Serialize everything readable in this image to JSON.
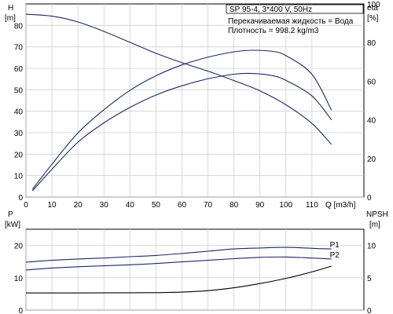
{
  "chart_data": [
    {
      "type": "line",
      "id": "head_efficiency",
      "info_box": {
        "model": "SP 95-4, 3*400 V, 50Hz",
        "liquid": "Перекачиваемая жидкость = Вода",
        "density": "Плотность = 998.2 kg/m3"
      },
      "left_axis": {
        "label_top": "H",
        "label_unit": "[m]",
        "range": [
          0,
          90
        ],
        "ticks": [
          0,
          10,
          20,
          30,
          40,
          50,
          60,
          70,
          80
        ]
      },
      "right_axis": {
        "label_top": "eta",
        "label_unit": "[%]",
        "range": [
          0,
          100
        ],
        "ticks": [
          0,
          20,
          40,
          60,
          80,
          100
        ]
      },
      "x_axis": {
        "label": "Q [m3/h]",
        "range": [
          0,
          130
        ],
        "ticks": [
          0,
          10,
          20,
          30,
          40,
          50,
          60,
          70,
          80,
          90,
          100,
          110
        ]
      },
      "series": [
        {
          "axis": "left",
          "color": "#1b2a63",
          "points": [
            [
              0,
              85.2
            ],
            [
              10,
              84.3
            ],
            [
              20,
              81.6
            ],
            [
              30,
              77.2
            ],
            [
              40,
              72.1
            ],
            [
              50,
              67
            ],
            [
              60,
              62.6
            ],
            [
              70,
              58.7
            ],
            [
              80,
              54.3
            ],
            [
              90,
              49.5
            ],
            [
              100,
              43
            ],
            [
              110,
              34.3
            ],
            [
              117.5,
              24.5
            ]
          ]
        },
        {
          "axis": "right",
          "color": "#1b2a63",
          "points": [
            [
              2.5,
              4
            ],
            [
              10,
              17
            ],
            [
              20,
              33.2
            ],
            [
              30,
              45.2
            ],
            [
              40,
              55.2
            ],
            [
              50,
              62.8
            ],
            [
              60,
              68.4
            ],
            [
              70,
              72.4
            ],
            [
              80,
              75.2
            ],
            [
              87,
              76
            ],
            [
              95,
              75.4
            ],
            [
              100,
              73.2
            ],
            [
              110,
              63.6
            ],
            [
              117.5,
              45
            ]
          ]
        },
        {
          "axis": "right",
          "color": "#1b2a63",
          "points": [
            [
              2.5,
              3.2
            ],
            [
              10,
              14.4
            ],
            [
              20,
              28.4
            ],
            [
              30,
              38.4
            ],
            [
              40,
              46.4
            ],
            [
              50,
              52.8
            ],
            [
              60,
              57.6
            ],
            [
              70,
              61.2
            ],
            [
              80,
              63.6
            ],
            [
              87,
              64
            ],
            [
              95,
              62.8
            ],
            [
              100,
              60.4
            ],
            [
              110,
              52.4
            ],
            [
              117.5,
              40
            ]
          ]
        }
      ]
    },
    {
      "type": "line",
      "id": "power_npsh",
      "left_axis": {
        "label_top": "P",
        "label_unit": "[kW]",
        "range": [
          0,
          25
        ],
        "ticks": [
          0,
          10,
          20
        ]
      },
      "right_axis": {
        "label_top": "NPSH",
        "label_unit": "[m]",
        "range": [
          0,
          12.5
        ],
        "ticks": [
          0,
          5,
          10
        ]
      },
      "x_axis": {
        "range": [
          0,
          130
        ]
      },
      "series": [
        {
          "name": "P1",
          "axis": "left",
          "color": "#1b2a63",
          "points": [
            [
              0,
              14.8
            ],
            [
              10,
              15.4
            ],
            [
              20,
              15.8
            ],
            [
              30,
              16.1
            ],
            [
              40,
              16.5
            ],
            [
              50,
              16.9
            ],
            [
              60,
              17.5
            ],
            [
              70,
              18.2
            ],
            [
              80,
              18.9
            ],
            [
              90,
              19.2
            ],
            [
              100,
              19.4
            ],
            [
              110,
              19.1
            ],
            [
              117.5,
              18.9
            ]
          ]
        },
        {
          "name": "P2",
          "axis": "left",
          "color": "#1b2a63",
          "points": [
            [
              0,
              12.4
            ],
            [
              10,
              13
            ],
            [
              20,
              13.4
            ],
            [
              30,
              13.7
            ],
            [
              40,
              14
            ],
            [
              50,
              14.4
            ],
            [
              60,
              14.9
            ],
            [
              70,
              15.4
            ],
            [
              80,
              15.9
            ],
            [
              90,
              16.3
            ],
            [
              100,
              16.4
            ],
            [
              110,
              16.1
            ],
            [
              117.5,
              15.8
            ]
          ]
        },
        {
          "axis": "right",
          "color": "#000000",
          "points": [
            [
              0,
              2.65
            ],
            [
              20,
              2.65
            ],
            [
              40,
              2.68
            ],
            [
              50,
              2.7
            ],
            [
              60,
              2.78
            ],
            [
              70,
              3
            ],
            [
              80,
              3.45
            ],
            [
              90,
              4.1
            ],
            [
              100,
              4.9
            ],
            [
              110,
              5.9
            ],
            [
              117.5,
              6.8
            ]
          ]
        }
      ]
    }
  ]
}
